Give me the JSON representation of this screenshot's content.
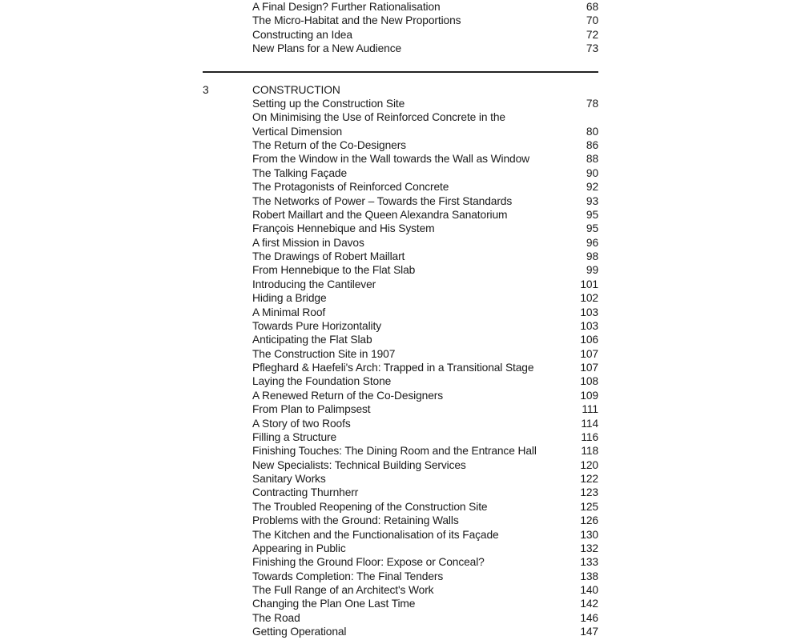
{
  "page": {
    "background": "#ffffff",
    "text_color": "#1a1a1a",
    "divider_color": "#222222"
  },
  "toc": {
    "sections": [
      {
        "number": "",
        "heading": "",
        "entries": [
          {
            "lines": [
              "A Final Design? Further Rationalisation"
            ],
            "page": "68"
          },
          {
            "lines": [
              "The Micro-Habitat and the New Proportions"
            ],
            "page": "70"
          },
          {
            "lines": [
              "Constructing an Idea"
            ],
            "page": "72"
          },
          {
            "lines": [
              "New Plans for a New Audience"
            ],
            "page": "73"
          }
        ]
      },
      {
        "number": "3",
        "heading": "CONSTRUCTION",
        "entries": [
          {
            "lines": [
              "Setting up the Construction Site"
            ],
            "page": "78"
          },
          {
            "lines": [
              "On Minimising the Use of Reinforced Concrete in the",
              "Vertical Dimension"
            ],
            "page": "80"
          },
          {
            "lines": [
              "The Return of the Co-Designers"
            ],
            "page": "86"
          },
          {
            "lines": [
              "From the Window in the Wall towards the Wall as Window"
            ],
            "page": "88"
          },
          {
            "lines": [
              "The Talking Façade"
            ],
            "page": "90"
          },
          {
            "lines": [
              "The Protagonists of Reinforced Concrete"
            ],
            "page": "92"
          },
          {
            "lines": [
              "The Networks of Power – Towards the First Standards"
            ],
            "page": "93"
          },
          {
            "lines": [
              "Robert Maillart and the Queen Alexandra Sanatorium"
            ],
            "page": "95"
          },
          {
            "lines": [
              "François Hennebique and His System"
            ],
            "page": "95"
          },
          {
            "lines": [
              "A first Mission in Davos"
            ],
            "page": "96"
          },
          {
            "lines": [
              "The Drawings of Robert Maillart"
            ],
            "page": "98"
          },
          {
            "lines": [
              "From Hennebique to the Flat Slab"
            ],
            "page": "99"
          },
          {
            "lines": [
              "Introducing the Cantilever"
            ],
            "page": "101"
          },
          {
            "lines": [
              "Hiding a Bridge"
            ],
            "page": "102"
          },
          {
            "lines": [
              "A Minimal Roof"
            ],
            "page": "103"
          },
          {
            "lines": [
              "Towards Pure Horizontality"
            ],
            "page": "103"
          },
          {
            "lines": [
              "Anticipating the Flat Slab"
            ],
            "page": "106"
          },
          {
            "lines": [
              "The Construction Site in 1907"
            ],
            "page": "107"
          },
          {
            "lines": [
              "Pfleghard & Haefeli's Arch: Trapped in a Transitional Stage"
            ],
            "page": "107"
          },
          {
            "lines": [
              "Laying the Foundation Stone"
            ],
            "page": "108"
          },
          {
            "lines": [
              "A Renewed Return of the Co-Designers"
            ],
            "page": "109"
          },
          {
            "lines": [
              "From Plan to Palimpsest"
            ],
            "page": "111"
          },
          {
            "lines": [
              "A Story of two Roofs"
            ],
            "page": "114"
          },
          {
            "lines": [
              "Filling a Structure"
            ],
            "page": "116"
          },
          {
            "lines": [
              "Finishing Touches: The Dining Room and the Entrance Hall"
            ],
            "page": "118"
          },
          {
            "lines": [
              "New Specialists: Technical Building Services"
            ],
            "page": "120"
          },
          {
            "lines": [
              "Sanitary Works"
            ],
            "page": "122"
          },
          {
            "lines": [
              "Contracting Thurnherr"
            ],
            "page": "123"
          },
          {
            "lines": [
              "The Troubled Reopening of the Construction Site"
            ],
            "page": "125"
          },
          {
            "lines": [
              "Problems with the Ground: Retaining Walls"
            ],
            "page": "126"
          },
          {
            "lines": [
              "The Kitchen and the Functionalisation of its Façade"
            ],
            "page": "130"
          },
          {
            "lines": [
              "Appearing in Public"
            ],
            "page": "132"
          },
          {
            "lines": [
              "Finishing the Ground Floor: Expose or Conceal?"
            ],
            "page": "133"
          },
          {
            "lines": [
              "Towards Completion: The Final Tenders"
            ],
            "page": "138"
          },
          {
            "lines": [
              "The Full Range of an Architect's Work"
            ],
            "page": "140"
          },
          {
            "lines": [
              "Changing the Plan One Last Time"
            ],
            "page": "142"
          },
          {
            "lines": [
              "The Road"
            ],
            "page": "146"
          },
          {
            "lines": [
              "Getting Operational"
            ],
            "page": "147"
          }
        ]
      }
    ]
  }
}
